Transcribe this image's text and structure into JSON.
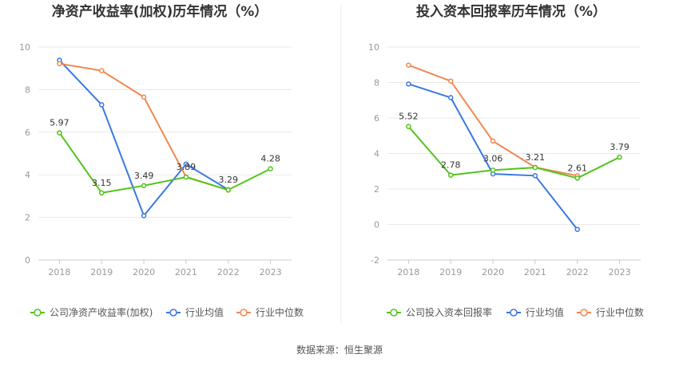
{
  "source": "数据来源：恒生聚源",
  "chart_data": [
    {
      "type": "line",
      "title": "净资产收益率(加权)历年情况（%）",
      "categories": [
        "2018",
        "2019",
        "2020",
        "2021",
        "2022",
        "2023"
      ],
      "ylim": [
        0,
        10
      ],
      "yticks": [
        0,
        2,
        4,
        6,
        8,
        10
      ],
      "grid": true,
      "legend_position": "bottom",
      "series": [
        {
          "name": "公司净资产收益率(加权)",
          "color": "#52c41a",
          "values": [
            5.97,
            3.15,
            3.49,
            3.89,
            3.29,
            4.28
          ],
          "labels": [
            "5.97",
            "3.15",
            "3.49",
            "3.89",
            "3.29",
            "4.28"
          ]
        },
        {
          "name": "行业均值",
          "color": "#3a78e0",
          "values": [
            9.38,
            7.29,
            2.08,
            4.5,
            3.3,
            null
          ]
        },
        {
          "name": "行业中位数",
          "color": "#f08850",
          "values": [
            9.22,
            8.89,
            7.65,
            3.9,
            3.28,
            null
          ]
        }
      ]
    },
    {
      "type": "line",
      "title": "投入资本回报率历年情况（%）",
      "categories": [
        "2018",
        "2019",
        "2020",
        "2021",
        "2022",
        "2023"
      ],
      "ylim": [
        -2,
        10
      ],
      "yticks": [
        -2,
        0,
        2,
        4,
        6,
        8,
        10
      ],
      "grid": true,
      "legend_position": "bottom",
      "series": [
        {
          "name": "公司投入资本回报率",
          "color": "#52c41a",
          "values": [
            5.52,
            2.78,
            3.06,
            3.21,
            2.61,
            3.79
          ],
          "labels": [
            "5.52",
            "2.78",
            "3.06",
            "3.21",
            "2.61",
            "3.79"
          ]
        },
        {
          "name": "行业均值",
          "color": "#3a78e0",
          "values": [
            7.92,
            7.15,
            2.85,
            2.75,
            -0.28,
            null
          ]
        },
        {
          "name": "行业中位数",
          "color": "#f08850",
          "values": [
            8.98,
            8.08,
            4.7,
            3.22,
            2.75,
            null
          ]
        }
      ]
    }
  ]
}
